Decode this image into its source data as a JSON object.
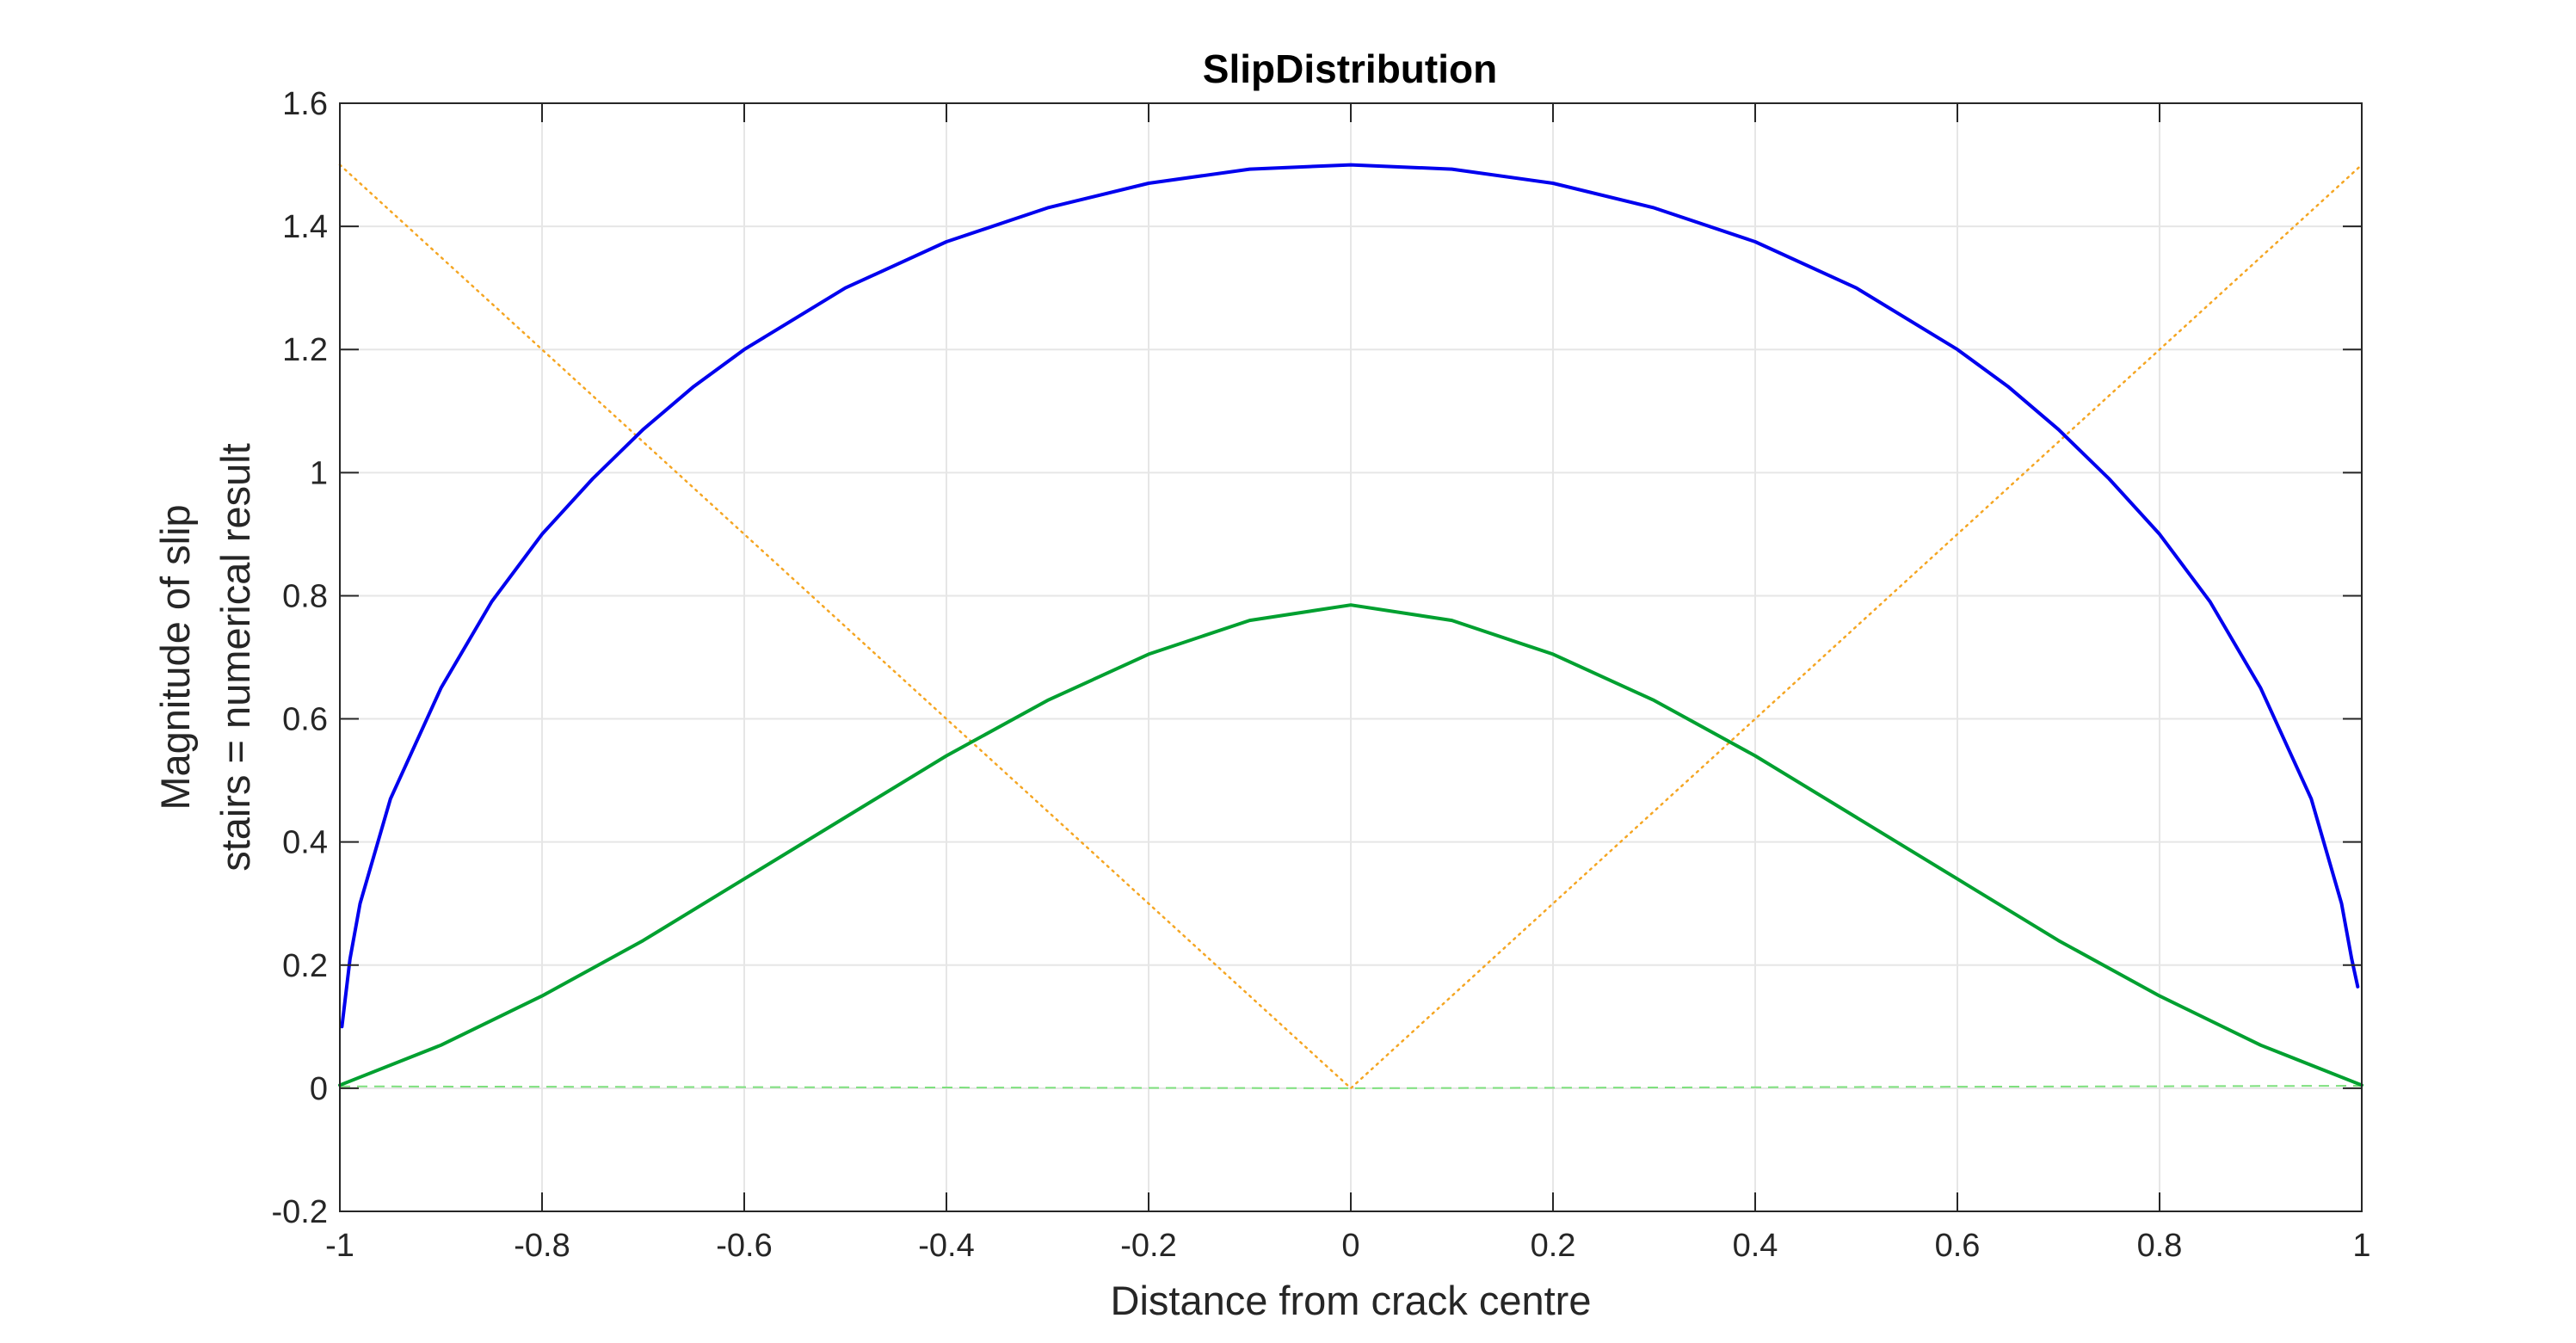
{
  "chart_data": {
    "type": "line",
    "title": "SlipDistribution",
    "xlabel": "Distance from crack centre",
    "ylabel": [
      "Magnitude of slip",
      "stairs = numerical result"
    ],
    "xlim": [
      -1,
      1
    ],
    "ylim": [
      -0.2,
      1.6
    ],
    "xticks": [
      -1,
      -0.8,
      -0.6,
      -0.4,
      -0.2,
      0,
      0.2,
      0.4,
      0.6,
      0.8,
      1
    ],
    "xtick_labels": [
      "-1",
      "-0.8",
      "-0.6",
      "-0.4",
      "-0.2",
      "0",
      "0.2",
      "0.4",
      "0.6",
      "0.8",
      "1"
    ],
    "yticks": [
      -0.2,
      0,
      0.2,
      0.4,
      0.6,
      0.8,
      1,
      1.2,
      1.4,
      1.6
    ],
    "ytick_labels": [
      "-0.2",
      "0",
      "0.2",
      "0.4",
      "0.6",
      "0.8",
      "1",
      "1.2",
      "1.4",
      "1.6"
    ],
    "grid": true,
    "legend": "none",
    "series": [
      {
        "color": "#0000ee",
        "style": "solid",
        "x": [
          -0.998,
          -0.99,
          -0.98,
          -0.95,
          -0.9,
          -0.85,
          -0.8,
          -0.75,
          -0.7,
          -0.65,
          -0.6,
          -0.5,
          -0.4,
          -0.3,
          -0.2,
          -0.1,
          0,
          0.1,
          0.2,
          0.3,
          0.4,
          0.5,
          0.6,
          0.65,
          0.7,
          0.75,
          0.8,
          0.85,
          0.9,
          0.95,
          0.98,
          0.99,
          0.996
        ],
        "y": [
          0.1,
          0.21,
          0.3,
          0.47,
          0.65,
          0.79,
          0.9,
          0.99,
          1.07,
          1.14,
          1.2,
          1.3,
          1.375,
          1.43,
          1.47,
          1.493,
          1.5,
          1.493,
          1.47,
          1.43,
          1.375,
          1.3,
          1.2,
          1.14,
          1.07,
          0.99,
          0.9,
          0.79,
          0.65,
          0.47,
          0.3,
          0.21,
          0.165
        ]
      },
      {
        "color": "#00a030",
        "style": "solid",
        "x": [
          -1,
          -0.9,
          -0.8,
          -0.7,
          -0.6,
          -0.5,
          -0.4,
          -0.3,
          -0.2,
          -0.1,
          0,
          0.1,
          0.2,
          0.3,
          0.4,
          0.5,
          0.6,
          0.7,
          0.8,
          0.9,
          1
        ],
        "y": [
          0.005,
          0.07,
          0.15,
          0.24,
          0.34,
          0.44,
          0.54,
          0.63,
          0.705,
          0.76,
          0.785,
          0.76,
          0.705,
          0.63,
          0.54,
          0.44,
          0.34,
          0.24,
          0.15,
          0.07,
          0.005
        ]
      },
      {
        "color": "#f5a623",
        "style": "dotted",
        "x": [
          -1,
          0,
          1
        ],
        "y": [
          1.5,
          0,
          1.5
        ]
      },
      {
        "color": "#7ee07e",
        "style": "dashed",
        "x": [
          -1,
          0,
          1
        ],
        "y": [
          0.003,
          0.0,
          0.004
        ]
      }
    ]
  }
}
